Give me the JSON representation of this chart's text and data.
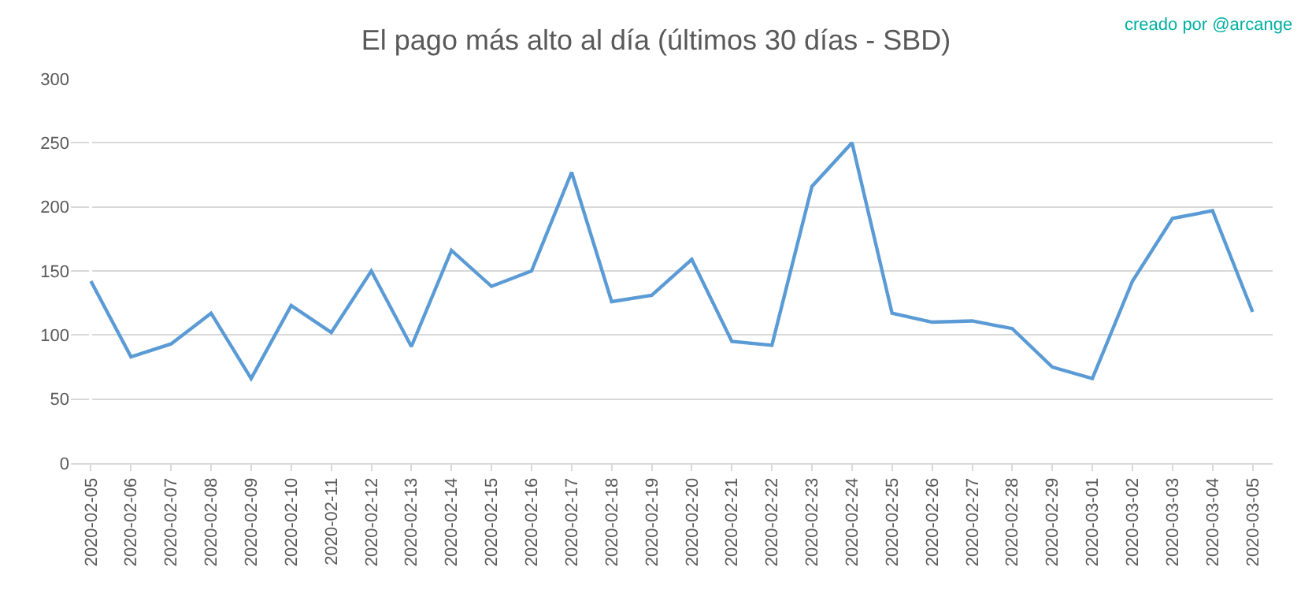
{
  "chart_data": {
    "type": "line",
    "title": "El pago más alto al día (últimos 30 días - SBD)",
    "annotations": [
      "creado por @arcange"
    ],
    "categories": [
      "2020-02-05",
      "2020-02-06",
      "2020-02-07",
      "2020-02-08",
      "2020-02-09",
      "2020-02-10",
      "2020-02-11",
      "2020-02-12",
      "2020-02-13",
      "2020-02-14",
      "2020-02-15",
      "2020-02-16",
      "2020-02-17",
      "2020-02-18",
      "2020-02-19",
      "2020-02-20",
      "2020-02-21",
      "2020-02-22",
      "2020-02-23",
      "2020-02-24",
      "2020-02-25",
      "2020-02-26",
      "2020-02-27",
      "2020-02-28",
      "2020-02-29",
      "2020-03-01",
      "2020-03-02",
      "2020-03-03",
      "2020-03-04",
      "2020-03-05"
    ],
    "series": [
      {
        "color": "#5b9bd5",
        "values": [
          142,
          83,
          93,
          117,
          66,
          123,
          102,
          150,
          91,
          166,
          138,
          150,
          227,
          126,
          131,
          159,
          95,
          92,
          216,
          250,
          117,
          110,
          111,
          105,
          75,
          66,
          142,
          191,
          197,
          118
        ]
      }
    ],
    "ylim": [
      0,
      300
    ],
    "yticks": [
      0,
      50,
      100,
      150,
      200,
      250,
      300
    ],
    "grid": "y",
    "marker": "none",
    "line_style": "solid"
  }
}
